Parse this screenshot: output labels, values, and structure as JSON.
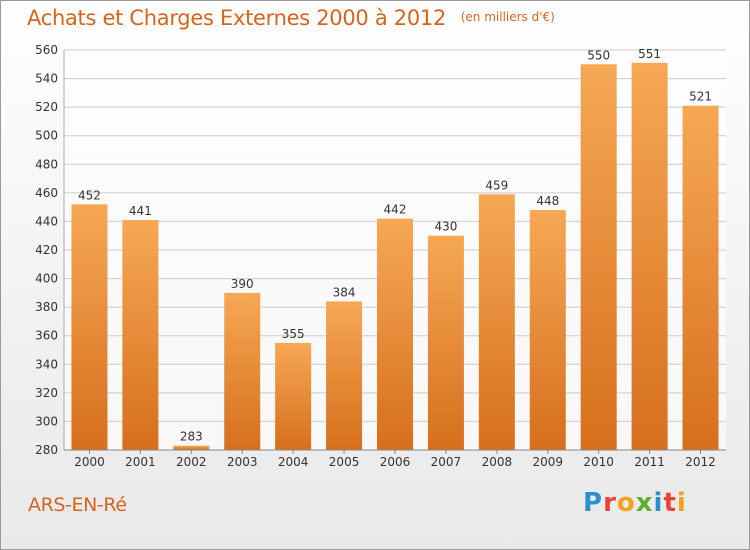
{
  "title": "Achats et Charges Externes 2000 à 2012",
  "unit": "(en milliers d'€)",
  "city": "ARS-EN-Ré",
  "logo": "Proxiti",
  "colors": {
    "bar": "#f0953f",
    "accent": "#d8641c"
  },
  "chart_data": {
    "type": "bar",
    "categories": [
      "2000",
      "2001",
      "2002",
      "2003",
      "2004",
      "2005",
      "2006",
      "2007",
      "2008",
      "2009",
      "2010",
      "2011",
      "2012"
    ],
    "values": [
      452,
      441,
      283,
      390,
      355,
      384,
      442,
      430,
      459,
      448,
      550,
      551,
      521
    ],
    "ylim": [
      280,
      560
    ],
    "yticks": [
      280,
      300,
      320,
      340,
      360,
      380,
      400,
      420,
      440,
      460,
      480,
      500,
      520,
      540,
      560
    ],
    "grid": true,
    "legend": "none"
  }
}
